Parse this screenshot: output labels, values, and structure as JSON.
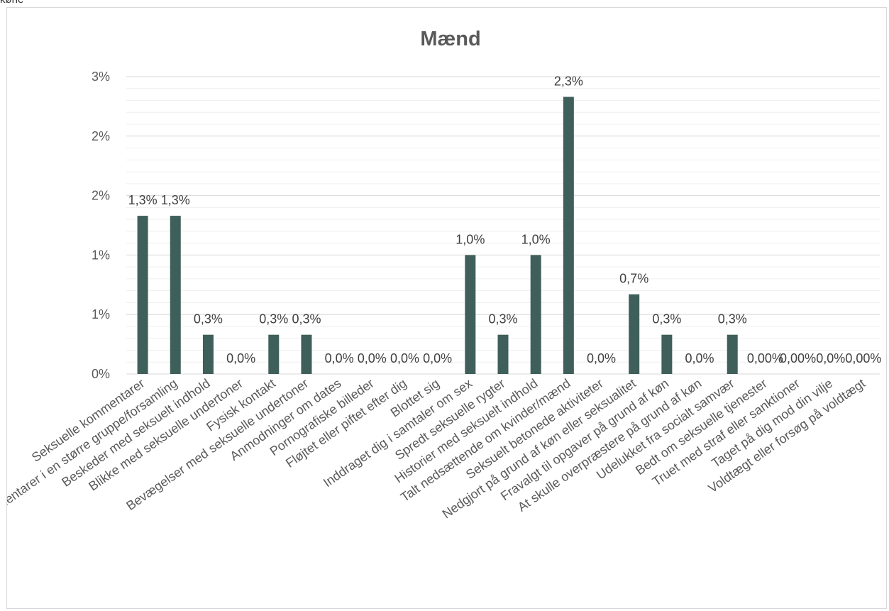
{
  "corner_label": "køne",
  "chart_data": {
    "type": "bar",
    "title": "Mænd",
    "xlabel": "",
    "ylabel": "",
    "ylim": [
      0,
      0.025
    ],
    "y_tick_values": [
      0,
      0.005,
      0.01,
      0.015,
      0.02,
      0.025
    ],
    "y_tick_labels": [
      "0%",
      "1%",
      "1%",
      "2%",
      "2%",
      "3%"
    ],
    "grid": true,
    "legend": "none",
    "bar_color": "#3f5f5a",
    "categories": [
      "Seksuelle kommentarer",
      "Seksuelle kommentarer i en større gruppe/forsamling",
      "Beskeder med seksuelt indhold",
      "Blikke med seksuelle undertoner",
      "Fysisk kontakt",
      "Bevægelser med seksuelle undertoner",
      "Anmodninger om dates",
      "Pornografiske billeder",
      "Fløjtet eller piftet efter dig",
      "Blottet sig",
      "Inddraget dig i samtaler om sex",
      "Spredt seksuelle rygter",
      "Historier med seksuelt indhold",
      "Talt nedsættende om kvinder/mænd",
      "Seksuelt betonede aktiviteter",
      "Nedgjort på grund af køn eller seksualitet",
      "Fravalgt til opgaver på grund af køn",
      "At skulle overpræstere på grund af køn",
      "Udelukket fra socialt samvær",
      "Bedt om seksuelle tjenester",
      "Truet med straf eller sanktioner",
      "Taget på dig mod din vilje",
      "Voldtægt eller forsøg på voldtægt"
    ],
    "values": [
      0.0133,
      0.0133,
      0.0033,
      0.0,
      0.0033,
      0.0033,
      0.0,
      0.0,
      0.0,
      0.0,
      0.01,
      0.0033,
      0.01,
      0.0233,
      0.0,
      0.0067,
      0.0033,
      0.0,
      0.0033,
      0.0,
      0.0,
      0.0,
      0.0
    ],
    "data_labels": [
      "1,3%",
      "1,3%",
      "0,3%",
      "0,0%",
      "0,3%",
      "0,3%",
      "0,0%",
      "0,0%",
      "0,0%",
      "0,0%",
      "1,0%",
      "0,3%",
      "1,0%",
      "2,3%",
      "0,0%",
      "0,7%",
      "0,3%",
      "0,0%",
      "0,3%",
      "0,00%",
      "0,00%",
      "0,0%",
      "0,00%"
    ]
  }
}
